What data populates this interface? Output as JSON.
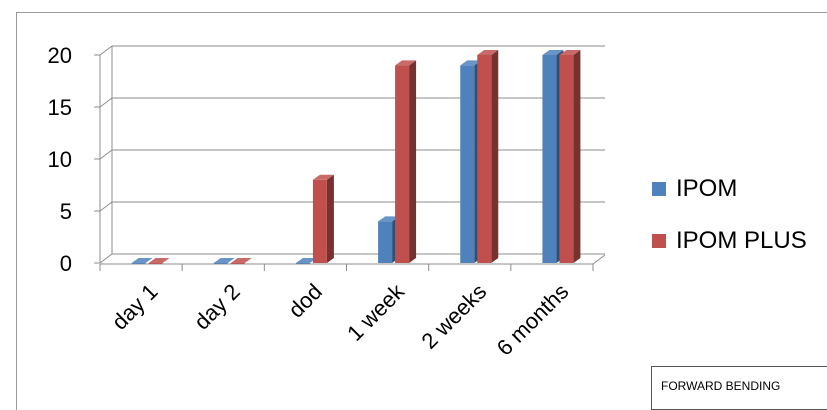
{
  "chart_data": {
    "type": "bar",
    "categories": [
      "day 1",
      "day 2",
      "dod",
      "1 week",
      "2 weeks",
      "6 months"
    ],
    "series": [
      {
        "name": "IPOM",
        "values": [
          0,
          0,
          0,
          4,
          19,
          20
        ],
        "color": "#4f81bd"
      },
      {
        "name": "IPOM PLUS",
        "values": [
          0,
          0,
          8,
          19,
          20,
          20
        ],
        "color": "#c0504d"
      }
    ],
    "yticks": [
      0,
      5,
      10,
      15,
      20
    ],
    "ylim": [
      0,
      20
    ],
    "grid": true,
    "legend_position": "right",
    "title": "",
    "xlabel": "",
    "ylabel": ""
  },
  "caption": "FORWARD BENDING"
}
